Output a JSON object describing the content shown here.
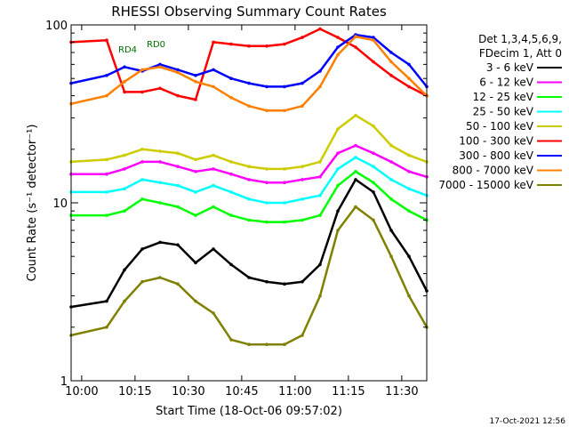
{
  "chart_data": {
    "type": "line",
    "title": "RHESSI Observing Summary Count Rates",
    "xlabel": "Start Time (18-Oct-06 09:57:02)",
    "ylabel": "Count Rate (s⁻¹ detector⁻¹)",
    "x_range_minutes_after_start": [
      0,
      100
    ],
    "x_ticks": [
      {
        "label": "10:00",
        "minutes_after_start": 2.97
      },
      {
        "label": "10:15",
        "minutes_after_start": 17.97
      },
      {
        "label": "10:30",
        "minutes_after_start": 32.97
      },
      {
        "label": "10:45",
        "minutes_after_start": 47.97
      },
      {
        "label": "11:00",
        "minutes_after_start": 62.97
      },
      {
        "label": "11:15",
        "minutes_after_start": 77.97
      },
      {
        "label": "11:30",
        "minutes_after_start": 92.97
      }
    ],
    "y_scale": "log",
    "ylim": [
      1,
      100
    ],
    "y_tick_labels": [
      "1",
      "10",
      "100"
    ],
    "grid": false,
    "legend_title": [
      "Det 1,3,4,5,6,9,",
      "FDecim 1, Att 0"
    ],
    "legend_position": "right",
    "annotations": [
      "RD0",
      "RD4"
    ],
    "footer": "17-Oct-2021 12:56",
    "series": [
      {
        "name": "3 - 6 keV",
        "color": "#000000",
        "x": [
          0,
          10,
          15,
          20,
          25,
          30,
          35,
          40,
          45,
          50,
          55,
          60,
          65,
          70,
          75,
          80,
          85,
          90,
          95,
          100
        ],
        "y": [
          2.6,
          2.8,
          4.2,
          5.5,
          6.0,
          5.8,
          4.6,
          5.5,
          4.5,
          3.8,
          3.6,
          3.5,
          3.6,
          4.5,
          9.0,
          13.5,
          11.5,
          7.0,
          5.0,
          3.2
        ]
      },
      {
        "name": "6 - 12 keV",
        "color": "#ff00ff",
        "x": [
          0,
          10,
          15,
          20,
          25,
          30,
          35,
          40,
          45,
          50,
          55,
          60,
          65,
          70,
          75,
          80,
          85,
          90,
          95,
          100
        ],
        "y": [
          14.5,
          14.5,
          15.5,
          17,
          17,
          16,
          15,
          15.5,
          14.5,
          13.5,
          13,
          13,
          13.5,
          14,
          19,
          21,
          19,
          17,
          15,
          14
        ]
      },
      {
        "name": "12 - 25 keV",
        "color": "#00ff00",
        "x": [
          0,
          10,
          15,
          20,
          25,
          30,
          35,
          40,
          45,
          50,
          55,
          60,
          65,
          70,
          75,
          80,
          85,
          90,
          95,
          100
        ],
        "y": [
          8.5,
          8.5,
          9.0,
          10.5,
          10.0,
          9.5,
          8.5,
          9.5,
          8.5,
          8.0,
          7.8,
          7.8,
          8.0,
          8.5,
          12.5,
          15.0,
          13.0,
          10.5,
          9.0,
          8.0
        ]
      },
      {
        "name": "25 - 50 keV",
        "color": "#00ffff",
        "x": [
          0,
          10,
          15,
          20,
          25,
          30,
          35,
          40,
          45,
          50,
          55,
          60,
          65,
          70,
          75,
          80,
          85,
          90,
          95,
          100
        ],
        "y": [
          11.5,
          11.5,
          12.0,
          13.5,
          13.0,
          12.5,
          11.5,
          12.5,
          11.5,
          10.5,
          10.0,
          10.0,
          10.5,
          11.0,
          15.5,
          18.0,
          16.0,
          13.5,
          12.0,
          11.0
        ]
      },
      {
        "name": "50 - 100 keV",
        "color": "#cccc00",
        "x": [
          0,
          10,
          15,
          20,
          25,
          30,
          35,
          40,
          45,
          50,
          55,
          60,
          65,
          70,
          75,
          80,
          85,
          90,
          95,
          100
        ],
        "y": [
          17.0,
          17.5,
          18.5,
          20.0,
          19.5,
          19.0,
          17.5,
          18.5,
          17.0,
          16.0,
          15.5,
          15.5,
          16.0,
          17.0,
          26.0,
          31.0,
          27.0,
          21.0,
          18.5,
          17.0
        ]
      },
      {
        "name": "100 - 300 keV",
        "color": "#ff0000",
        "x": [
          0,
          10,
          15,
          20,
          25,
          30,
          35,
          40,
          45,
          50,
          55,
          60,
          65,
          70,
          75,
          80,
          85,
          90,
          95,
          100
        ],
        "y": [
          80,
          82,
          42,
          42,
          44,
          40,
          38,
          80,
          78,
          76,
          76,
          78,
          85,
          95,
          85,
          75,
          62,
          52,
          45,
          40
        ]
      },
      {
        "name": "300 - 800 keV",
        "color": "#0000ff",
        "x": [
          0,
          10,
          15,
          20,
          25,
          30,
          35,
          40,
          45,
          50,
          55,
          60,
          65,
          70,
          75,
          80,
          85,
          90,
          95,
          100
        ],
        "y": [
          47,
          52,
          58,
          55,
          60,
          56,
          52,
          56,
          50,
          47,
          45,
          45,
          47,
          55,
          75,
          88,
          85,
          70,
          60,
          45
        ]
      },
      {
        "name": "800 - 7000 keV",
        "color": "#ff8000",
        "x": [
          0,
          10,
          15,
          20,
          25,
          30,
          35,
          40,
          45,
          50,
          55,
          60,
          65,
          70,
          75,
          80,
          85,
          90,
          95,
          100
        ],
        "y": [
          36,
          40,
          48,
          56,
          58,
          54,
          48,
          45,
          39,
          35,
          33,
          33,
          35,
          45,
          68,
          86,
          82,
          62,
          50,
          40
        ]
      },
      {
        "name": "7000 - 15000 keV",
        "color": "#808000",
        "x": [
          0,
          10,
          15,
          20,
          25,
          30,
          35,
          40,
          45,
          50,
          55,
          60,
          65,
          70,
          75,
          80,
          85,
          90,
          95,
          100
        ],
        "y": [
          1.8,
          2.0,
          2.8,
          3.6,
          3.8,
          3.5,
          2.8,
          2.4,
          1.7,
          1.6,
          1.6,
          1.6,
          1.8,
          3.0,
          7.0,
          9.5,
          8.0,
          5.0,
          3.0,
          2.0
        ]
      }
    ]
  }
}
